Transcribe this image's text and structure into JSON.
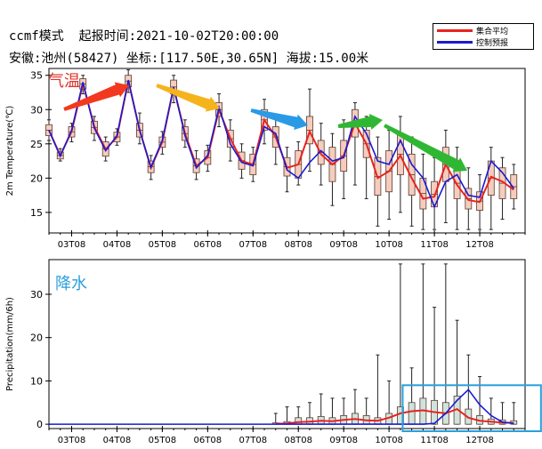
{
  "header": {
    "line1": "ccmf模式  起报时间:2021-10-02T20:00:00",
    "line2": "安徽:池州(58427) 坐标:[117.50E,30.65N] 海拔:15.00米"
  },
  "legend": {
    "items": [
      {
        "label": "集合平均",
        "color": "#e8231f"
      },
      {
        "label": "控制预报",
        "color": "#1a1ad0"
      }
    ]
  },
  "overlay_labels": {
    "temp": "气温",
    "precip": "降水"
  },
  "x_ticks": [
    "03T08",
    "04T08",
    "05T08",
    "06T08",
    "07T08",
    "08T08",
    "09T08",
    "10T08",
    "11T08",
    "12T08"
  ],
  "colors": {
    "box_fill": "#f5cdbe",
    "box_edge": "#5a3a30",
    "mean_line": "#e8231f",
    "control_line": "#1a1ad0",
    "precip_box_fill": "#cfe5dc",
    "highlight_box": "#2aa0dc",
    "arrow_red": "#f2391f",
    "arrow_orange": "#f5b31c",
    "arrow_blue": "#2a9ae6",
    "arrow_green": "#2fb733"
  },
  "chart_data": [
    {
      "type": "box-line",
      "ylabel": "2m Temperature(℃)",
      "ylim": [
        12,
        36
      ],
      "yticks": [
        15,
        20,
        25,
        30,
        35
      ],
      "x_range": [
        0.5,
        11.0
      ],
      "x": [
        0.5,
        0.75,
        1.0,
        1.25,
        1.5,
        1.75,
        2.0,
        2.25,
        2.5,
        2.75,
        3.0,
        3.25,
        3.5,
        3.75,
        4.0,
        4.25,
        4.5,
        4.75,
        5.0,
        5.25,
        5.5,
        5.75,
        6.0,
        6.25,
        6.5,
        6.75,
        7.0,
        7.25,
        7.5,
        7.75,
        8.0,
        8.25,
        8.5,
        8.75,
        9.0,
        9.25,
        9.5,
        9.75,
        10.0,
        10.25,
        10.5,
        10.75
      ],
      "mean": [
        27,
        23.3,
        26.8,
        33.8,
        27.5,
        24.2,
        26,
        34.2,
        27,
        21.5,
        25.3,
        33.2,
        26.5,
        21.8,
        23,
        30,
        25.8,
        22.5,
        22,
        28.5,
        26,
        21.5,
        22,
        26.8,
        23.5,
        22,
        23.3,
        28,
        25,
        20,
        21,
        23.3,
        20,
        17,
        17.3,
        22,
        19,
        16.8,
        16.5,
        20.2,
        19.5,
        18.3
      ],
      "control": [
        27,
        23.2,
        27,
        34,
        27.3,
        24,
        26.2,
        34.3,
        27,
        21.6,
        25.5,
        33.3,
        26.2,
        21.5,
        23.3,
        30.3,
        25,
        22.3,
        21.8,
        27.5,
        26.5,
        21.2,
        20,
        22.3,
        24,
        22.5,
        23,
        29,
        26.5,
        22.5,
        22,
        25.5,
        22,
        20,
        15.8,
        19.5,
        20.5,
        17.5,
        17.2,
        22.5,
        20.8,
        18.5
      ],
      "q1": [
        26.2,
        22.8,
        26,
        33,
        26.5,
        23.2,
        25.3,
        33.3,
        26,
        20.8,
        24.5,
        32.3,
        25.5,
        20.8,
        22,
        29,
        24.5,
        21.3,
        20.5,
        27,
        24.5,
        20.3,
        20,
        25,
        22,
        19.5,
        21,
        26,
        23,
        17.5,
        18,
        20.5,
        17.5,
        15.5,
        15.8,
        19.5,
        17,
        15.5,
        15.3,
        17.5,
        17,
        17
      ],
      "q3": [
        27.8,
        23.8,
        27.5,
        34.5,
        28.3,
        25.3,
        26.7,
        35,
        28,
        22.5,
        26,
        34.3,
        27.5,
        22.8,
        24,
        31,
        27,
        23.8,
        23.5,
        30,
        27.5,
        23,
        24,
        29,
        25.5,
        24.5,
        25.5,
        30,
        27,
        23,
        24,
        26.5,
        23.5,
        20,
        19.5,
        24.5,
        21.5,
        18.5,
        18,
        22.5,
        21.5,
        20.5
      ],
      "min": [
        25.5,
        22.5,
        25.3,
        32.3,
        25.5,
        22.5,
        24.8,
        32.5,
        25,
        19.8,
        23.5,
        31,
        24.5,
        19.8,
        21,
        27.5,
        22.5,
        20,
        19.5,
        25,
        22,
        18,
        19,
        21,
        19,
        16,
        17,
        19,
        17,
        13,
        14,
        15,
        13,
        12.5,
        12.5,
        13.5,
        12.5,
        12.5,
        12.5,
        12.5,
        14,
        15.5
      ],
      "max": [
        28.5,
        24.3,
        28,
        35,
        29,
        26,
        27.2,
        35.8,
        29.5,
        23.3,
        26.8,
        35,
        28.5,
        24,
        24.8,
        32.3,
        28.5,
        25,
        24.5,
        31.5,
        29,
        24.5,
        25.3,
        33,
        28,
        26.5,
        28.5,
        31,
        29,
        26,
        27,
        29,
        26,
        23.5,
        23,
        27,
        24.5,
        21.5,
        20.5,
        24.5,
        23,
        22
      ]
    },
    {
      "type": "box-line",
      "ylabel": "Precipitation(mm/6h)",
      "ylim": [
        -1,
        38
      ],
      "yticks": [
        0,
        10,
        20,
        30
      ],
      "x_range": [
        0.5,
        11.0
      ],
      "x": [
        5.5,
        5.75,
        6.0,
        6.25,
        6.5,
        6.75,
        7.0,
        7.25,
        7.5,
        7.75,
        8.0,
        8.25,
        8.5,
        8.75,
        9.0,
        9.25,
        9.5,
        9.75,
        10.0,
        10.25,
        10.5,
        10.75
      ],
      "mean": [
        0.1,
        0.2,
        0.5,
        0.6,
        0.8,
        0.7,
        1.0,
        1.2,
        0.9,
        0.8,
        1.5,
        2.5,
        3.0,
        3.2,
        2.8,
        2.5,
        3.5,
        1.5,
        0.8,
        0.6,
        0.4,
        0.3
      ],
      "control": [
        0,
        0,
        0,
        0,
        0,
        0,
        0,
        0,
        0,
        0,
        0,
        0,
        0,
        0,
        0.2,
        2.5,
        5.5,
        8.0,
        4.5,
        2.0,
        0.5,
        0.2
      ],
      "q1": [
        0,
        0,
        0,
        0,
        0,
        0,
        0,
        0,
        0,
        0,
        0,
        0,
        0,
        0,
        0,
        0,
        0,
        0,
        0,
        0,
        0,
        0
      ],
      "q3": [
        0.3,
        0.6,
        1.5,
        1.5,
        1.8,
        1.5,
        2.0,
        2.5,
        2.0,
        1.5,
        2.5,
        4.0,
        5.0,
        6.0,
        5.5,
        5.0,
        6.5,
        3.5,
        2.0,
        1.2,
        1.0,
        0.8
      ],
      "min": [
        0,
        0,
        0,
        0,
        0,
        0,
        0,
        0,
        0,
        0,
        0,
        0,
        0,
        0,
        0,
        0,
        0,
        0,
        0,
        0,
        0,
        0
      ],
      "max": [
        2.5,
        4.0,
        4.0,
        5.0,
        7.0,
        6.0,
        6.0,
        8.0,
        6.0,
        16.0,
        10.0,
        37.0,
        13.0,
        37.0,
        27.0,
        37.0,
        24.0,
        16.0,
        11.0,
        6.0,
        5.0,
        5.0
      ]
    }
  ]
}
